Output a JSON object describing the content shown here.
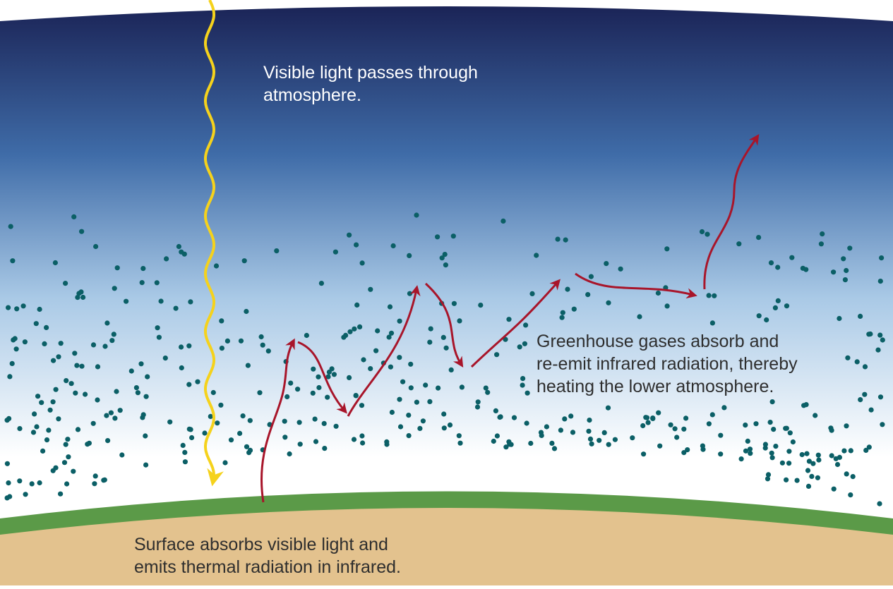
{
  "captions": {
    "visible_light": [
      "Visible light passes through",
      "atmosphere."
    ],
    "greenhouse": [
      "Greenhouse gases absorb and",
      "re-emit infrared radiation, thereby",
      "heating the lower atmosphere."
    ],
    "surface": [
      "Surface absorbs visible light and",
      "emits thermal radiation in infrared."
    ]
  },
  "colors": {
    "sky_top": "#1b2457",
    "sky_mid": "#3f6ca8",
    "sky_low": "#a9c9e6",
    "sky_bottom": "#ffffff",
    "gas_dot": "#0b5f66",
    "ground": "#e3c28e",
    "grass": "#5b9a48",
    "sunlight_ray": "#f5d21c",
    "infrared_ray": "#a8152a"
  },
  "icons": [
    "sunlight-ray-icon",
    "infrared-ray-icon",
    "gas-molecule-icon"
  ]
}
